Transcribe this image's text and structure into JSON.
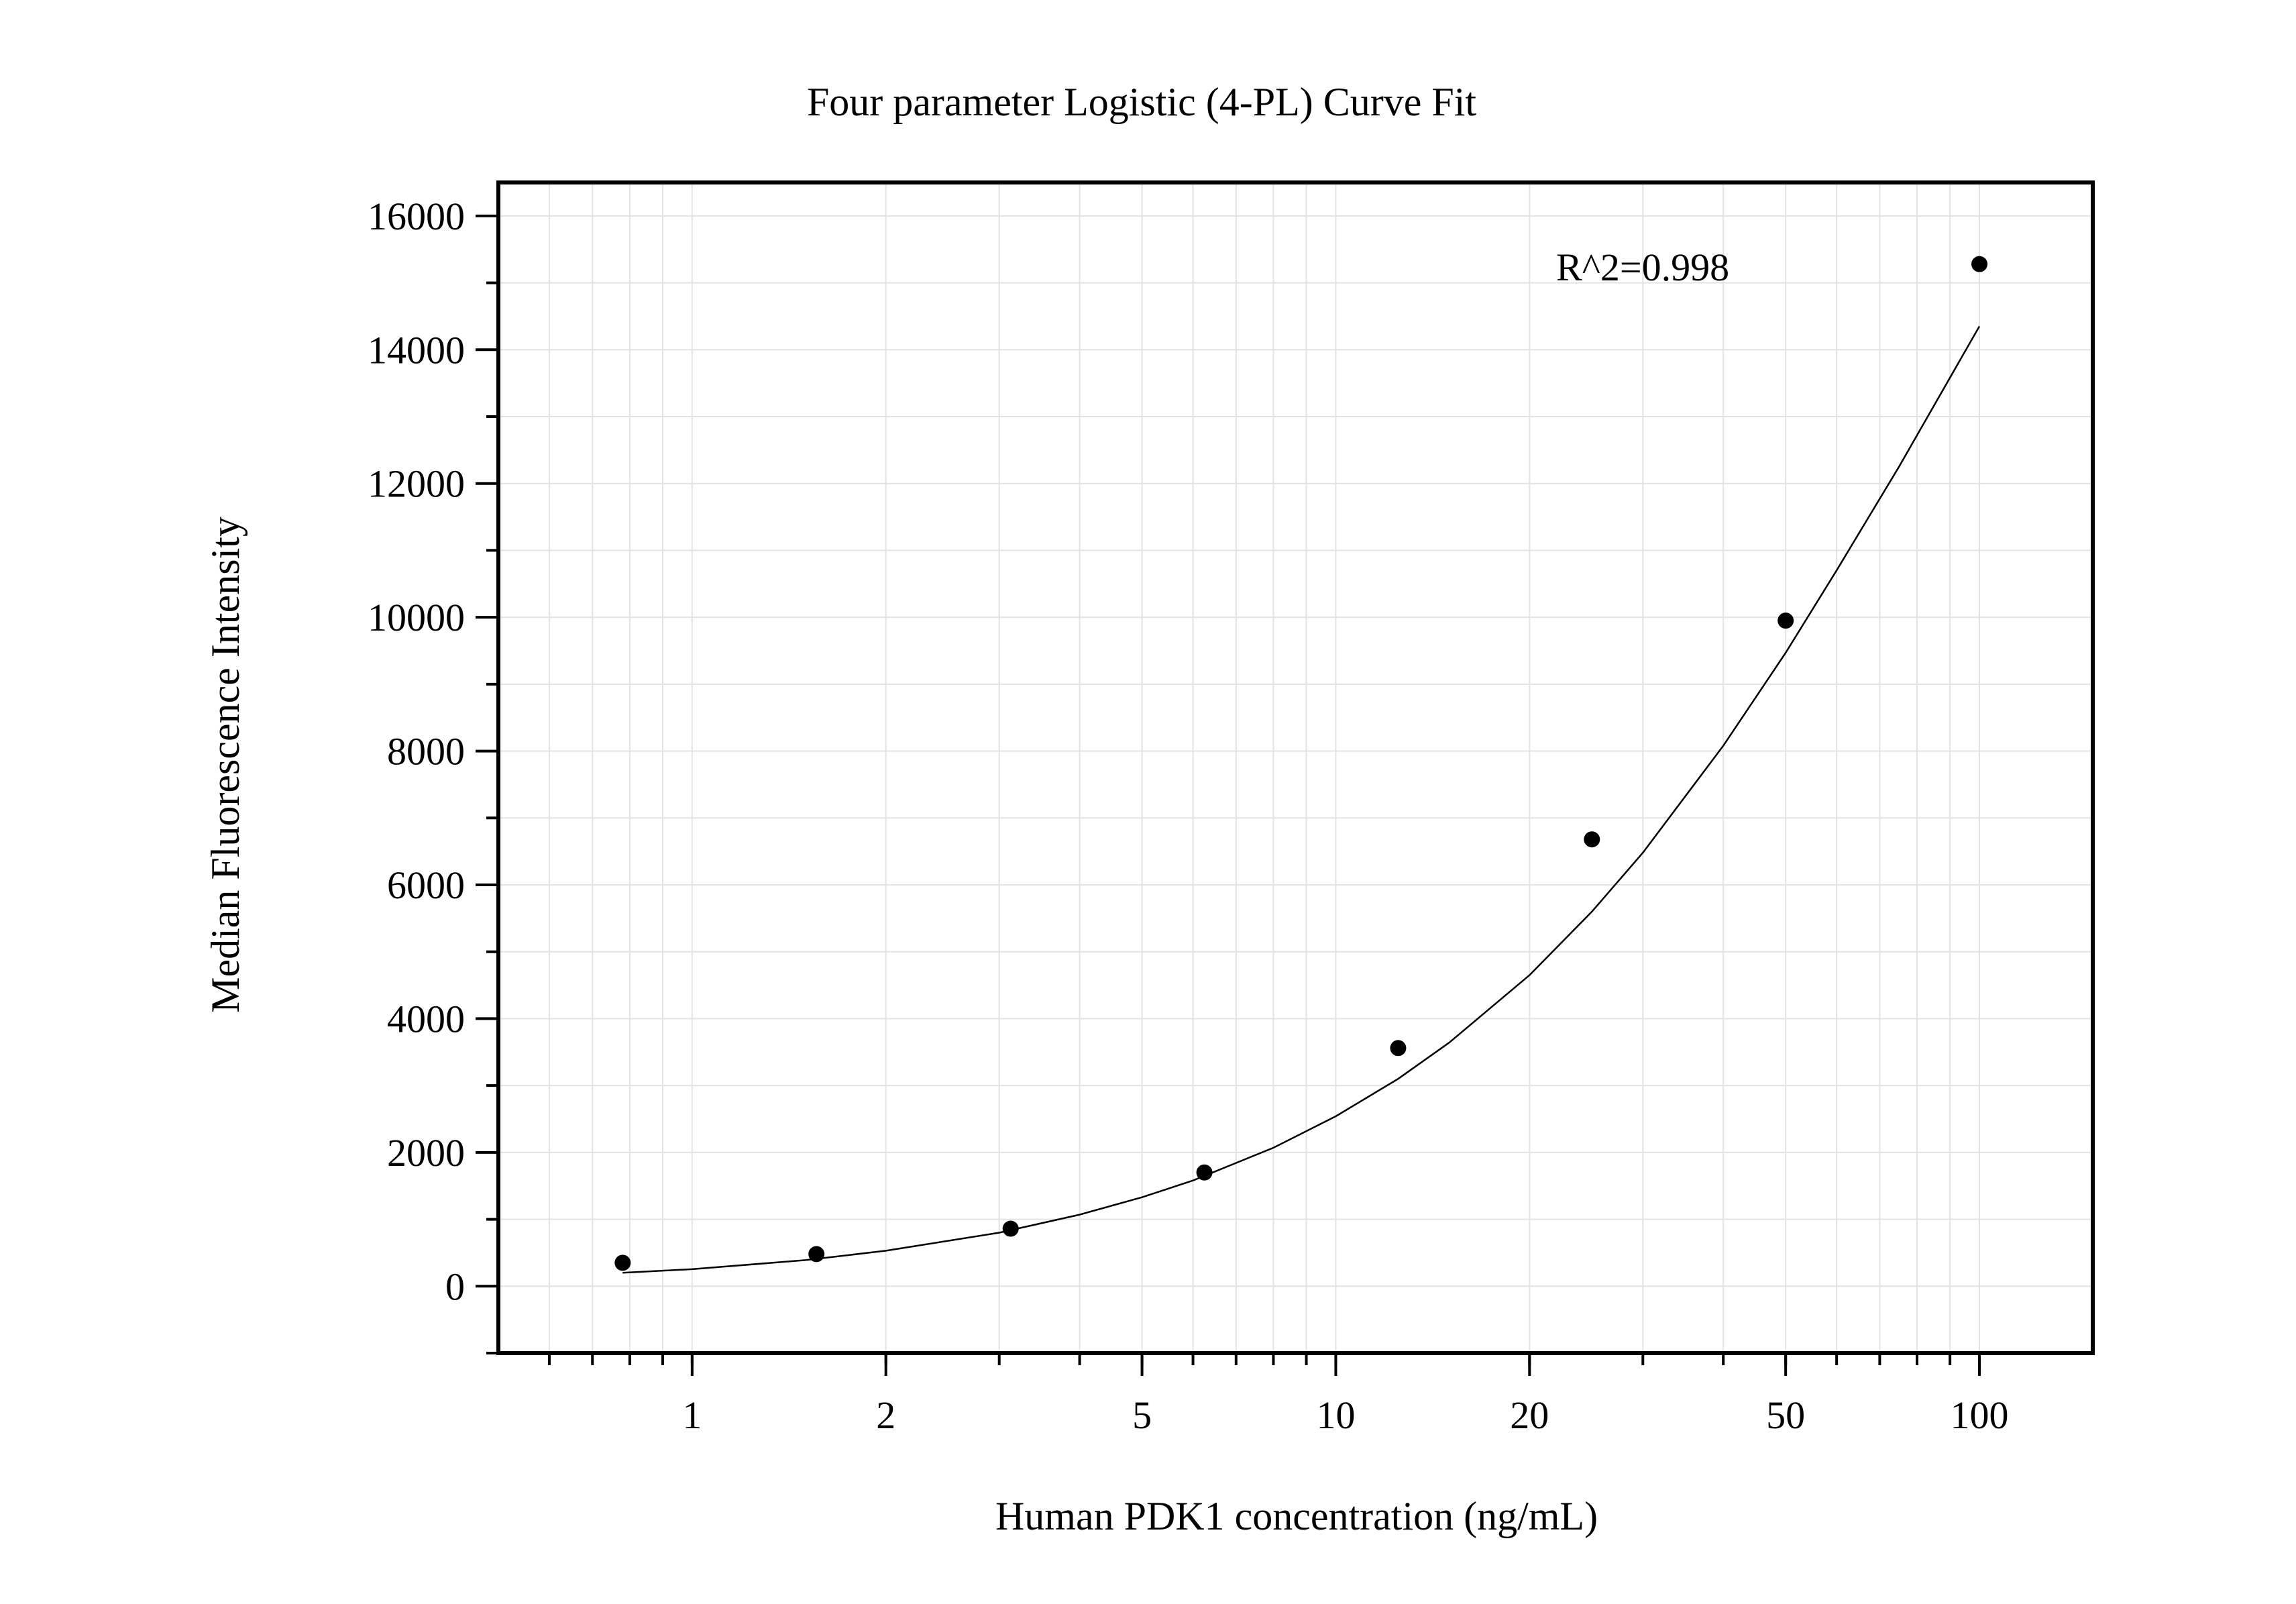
{
  "chart_data": {
    "type": "scatter",
    "title": "Four parameter Logistic (4-PL) Curve Fit",
    "xlabel": "Human PDK1 concentration (ng/mL)",
    "ylabel": "Median Fluorescence Intensity",
    "x_scale": "log",
    "xlim": [
      0.5,
      150
    ],
    "ylim": [
      -1000,
      16500
    ],
    "x_ticks": [
      1,
      2,
      5,
      10,
      20,
      50,
      100
    ],
    "x_tick_labels": [
      "1",
      "2",
      "5",
      "10",
      "20",
      "50",
      "100"
    ],
    "y_ticks": [
      0,
      2000,
      4000,
      6000,
      8000,
      10000,
      12000,
      14000,
      16000
    ],
    "y_tick_labels": [
      "0",
      "2000",
      "4000",
      "6000",
      "8000",
      "10000",
      "12000",
      "14000",
      "16000"
    ],
    "grid": true,
    "annotation": "R^2=0.998",
    "series": [
      {
        "type": "scatter",
        "x": [
          0.78,
          1.56,
          3.125,
          6.25,
          12.5,
          25,
          50,
          100
        ],
        "y": [
          350,
          480,
          860,
          1700,
          3560,
          6680,
          9950,
          15280
        ]
      },
      {
        "type": "line",
        "x": [
          0.78,
          1,
          1.5,
          2,
          3,
          4,
          5,
          6,
          8,
          10,
          12.5,
          15,
          20,
          25,
          30,
          40,
          50,
          60,
          75,
          100
        ],
        "y": [
          200,
          255,
          390,
          530,
          800,
          1070,
          1330,
          1580,
          2070,
          2540,
          3100,
          3640,
          4650,
          5600,
          6480,
          8080,
          9470,
          10700,
          12250,
          14350
        ]
      }
    ],
    "colors": {
      "points": "#000000",
      "curve": "#000000",
      "grid": "#e3e3e3",
      "axes": "#000000"
    }
  }
}
